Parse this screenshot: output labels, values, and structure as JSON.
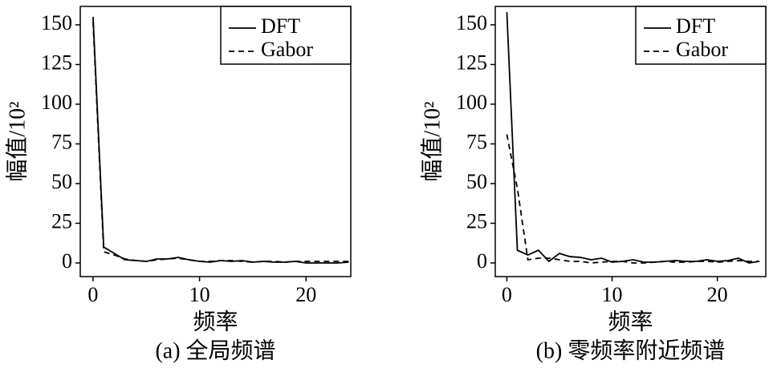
{
  "chart_data": [
    {
      "type": "line",
      "title": "(a) 全局频谱",
      "xlabel": "频率",
      "ylabel": "幅值/10²",
      "x": [
        0,
        1,
        2,
        3,
        4,
        5,
        6,
        7,
        8,
        9,
        10,
        11,
        12,
        13,
        14,
        15,
        16,
        17,
        18,
        19,
        20,
        21,
        22,
        23,
        24
      ],
      "xlim": [
        -1.2,
        24.2
      ],
      "xticks": [
        0,
        10,
        20
      ],
      "ylim": [
        -8.6,
        161.6
      ],
      "yticks": [
        0,
        25,
        50,
        75,
        100,
        125,
        150
      ],
      "legend": "upper right",
      "series": [
        {
          "name": "DFT",
          "color": "#000000",
          "linestyle": "solid",
          "values": [
            155,
            10,
            6,
            2,
            1.5,
            1,
            2.5,
            2.5,
            3.5,
            2,
            1,
            0.5,
            1.5,
            1,
            1.5,
            0.5,
            1,
            0.5,
            0.5,
            1,
            0,
            0,
            0,
            0,
            0.5
          ]
        },
        {
          "name": "Gabor",
          "color": "#000000",
          "linestyle": "dashed",
          "values": [
            152,
            7,
            5,
            2.5,
            1.5,
            1,
            2,
            2.5,
            3,
            2,
            1,
            1,
            1.5,
            1.5,
            1,
            0.5,
            1,
            1,
            0.5,
            1,
            1,
            1,
            1,
            1,
            1
          ]
        }
      ]
    },
    {
      "type": "line",
      "title": "(b) 零频率附近频谱",
      "xlabel": "频率",
      "ylabel": "幅值/10²",
      "x": [
        0,
        1,
        2,
        3,
        4,
        5,
        6,
        7,
        8,
        9,
        10,
        11,
        12,
        13,
        14,
        15,
        16,
        17,
        18,
        19,
        20,
        21,
        22,
        23,
        24
      ],
      "xlim": [
        -1.1,
        24.6
      ],
      "xticks": [
        0,
        10,
        20
      ],
      "ylim": [
        -8.6,
        161.6
      ],
      "yticks": [
        0,
        25,
        50,
        75,
        100,
        125,
        150
      ],
      "legend": "upper right",
      "series": [
        {
          "name": "DFT",
          "color": "#000000",
          "linestyle": "solid",
          "values": [
            158,
            8,
            5,
            8,
            1,
            6,
            4,
            3.5,
            2,
            3,
            0.5,
            1,
            2,
            0.5,
            0.5,
            1,
            1.5,
            1,
            1,
            2,
            1,
            1.5,
            3,
            0,
            1
          ]
        },
        {
          "name": "Gabor",
          "color": "#000000",
          "linestyle": "dashed",
          "values": [
            81,
            47,
            2,
            3,
            3,
            2,
            1,
            1,
            0,
            0.5,
            1,
            1,
            0,
            0,
            0.5,
            1,
            0.5,
            0.5,
            1,
            1,
            0.5,
            1,
            1.5,
            1,
            1
          ]
        }
      ]
    }
  ]
}
